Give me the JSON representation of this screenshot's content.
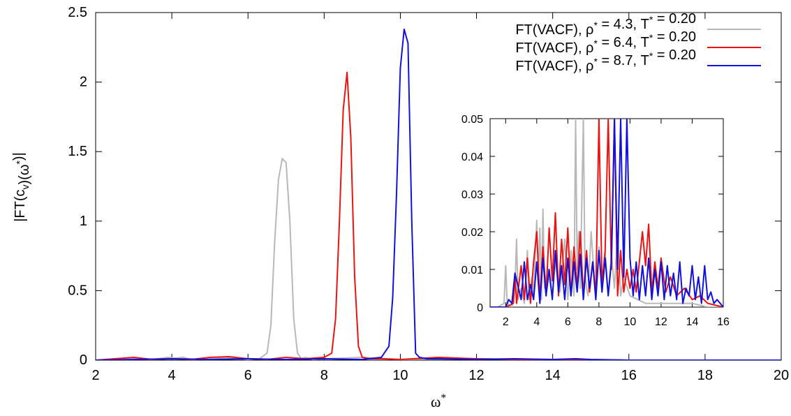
{
  "chart_data": [
    {
      "type": "line",
      "title": "",
      "xlabel": "ω*",
      "ylabel": "|FT(c_v)(ω*)|",
      "xlim": [
        2,
        20
      ],
      "ylim": [
        0,
        2.5
      ],
      "xticks": [
        "2",
        "4",
        "6",
        "8",
        "10",
        "12",
        "14",
        "16",
        "18",
        "20"
      ],
      "yticks": [
        "0",
        "0.5",
        "1",
        "1.5",
        "2",
        "2.5"
      ],
      "grid": false,
      "legend_position": "top-right",
      "series": [
        {
          "name": "FT(VACF), ρ* = 4.3, T* = 0.20",
          "color": "#b8b8b8",
          "x": [
            2.0,
            2.5,
            3.0,
            3.5,
            3.9,
            4.1,
            4.3,
            4.5,
            5.0,
            5.5,
            6.0,
            6.3,
            6.5,
            6.6,
            6.7,
            6.8,
            6.9,
            7.0,
            7.1,
            7.2,
            7.3,
            7.4,
            7.5,
            7.7,
            8.0,
            9.0,
            10.0,
            12.0,
            14.0,
            16.0,
            20.0
          ],
          "values": [
            0.0,
            0.005,
            0.01,
            0.005,
            0.02,
            0.015,
            0.02,
            0.005,
            0.01,
            0.015,
            0.005,
            0.01,
            0.05,
            0.25,
            0.85,
            1.3,
            1.45,
            1.42,
            1.0,
            0.3,
            0.05,
            0.01,
            0.02,
            0.005,
            0.01,
            0.02,
            0.005,
            0.01,
            0.005,
            0.0,
            0.0
          ]
        },
        {
          "name": "FT(VACF), ρ* = 6.4, T* = 0.20",
          "color": "#ee1111",
          "x": [
            2.0,
            2.5,
            3.0,
            3.5,
            4.0,
            4.5,
            5.0,
            5.5,
            6.0,
            6.5,
            7.0,
            7.5,
            8.0,
            8.2,
            8.3,
            8.4,
            8.5,
            8.6,
            8.7,
            8.8,
            8.9,
            9.0,
            9.2,
            9.5,
            10.0,
            11.0,
            12.0,
            13.0,
            14.0,
            16.0,
            20.0
          ],
          "values": [
            0.0,
            0.01,
            0.02,
            0.005,
            0.01,
            0.005,
            0.02,
            0.025,
            0.01,
            0.005,
            0.02,
            0.01,
            0.02,
            0.05,
            0.3,
            1.0,
            1.8,
            2.07,
            1.6,
            0.6,
            0.1,
            0.02,
            0.01,
            0.01,
            0.005,
            0.02,
            0.01,
            0.005,
            0.005,
            0.0,
            0.0
          ]
        },
        {
          "name": "FT(VACF), ρ* = 8.7, T* = 0.20",
          "color": "#1111dd",
          "x": [
            2.0,
            3.0,
            4.0,
            5.0,
            6.0,
            7.0,
            8.0,
            9.0,
            9.5,
            9.7,
            9.8,
            9.9,
            10.0,
            10.1,
            10.2,
            10.3,
            10.4,
            10.5,
            10.7,
            11.0,
            12.0,
            13.0,
            14.0,
            14.6,
            15.0,
            16.0,
            20.0
          ],
          "values": [
            0.0,
            0.005,
            0.01,
            0.005,
            0.01,
            0.005,
            0.01,
            0.005,
            0.02,
            0.1,
            0.45,
            1.2,
            2.1,
            2.38,
            2.28,
            1.0,
            0.05,
            0.02,
            0.01,
            0.01,
            0.005,
            0.01,
            0.005,
            0.01,
            0.005,
            0.0,
            0.0
          ]
        }
      ]
    },
    {
      "type": "line",
      "title": "",
      "xlim": [
        1,
        16
      ],
      "ylim": [
        0,
        0.05
      ],
      "xticks": [
        "2",
        "4",
        "6",
        "8",
        "10",
        "12",
        "14",
        "16"
      ],
      "yticks": [
        "0",
        "0.01",
        "0.02",
        "0.03",
        "0.04",
        "0.05"
      ],
      "grid": false,
      "series": [
        {
          "color": "#b8b8b8",
          "x": [
            1.0,
            1.5,
            1.9,
            2.0,
            2.1,
            2.4,
            2.6,
            2.7,
            2.8,
            3.0,
            3.2,
            3.4,
            3.5,
            3.7,
            3.8,
            4.0,
            4.1,
            4.2,
            4.3,
            4.4,
            4.5,
            4.7,
            5.0,
            5.2,
            5.5,
            5.8,
            6.0,
            6.2,
            6.4,
            6.5,
            6.6,
            6.7,
            6.8,
            7.0,
            7.1,
            7.2,
            7.3,
            7.5,
            7.8,
            8.0,
            8.2,
            8.4,
            8.6,
            8.8,
            9.0,
            9.2,
            9.4,
            9.6,
            10.0,
            10.5,
            11.0,
            12.0,
            13.0,
            14.0,
            15.0,
            16.0
          ],
          "values": [
            0.0,
            0.0,
            0.001,
            0.011,
            0.001,
            0.0,
            0.005,
            0.018,
            0.002,
            0.005,
            0.001,
            0.015,
            0.002,
            0.008,
            0.003,
            0.023,
            0.008,
            0.021,
            0.002,
            0.026,
            0.005,
            0.01,
            0.003,
            0.012,
            0.004,
            0.018,
            0.002,
            0.015,
            0.003,
            0.05,
            0.01,
            0.02,
            0.005,
            0.05,
            0.01,
            0.005,
            0.003,
            0.02,
            0.002,
            0.016,
            0.004,
            0.015,
            0.003,
            0.014,
            0.005,
            0.02,
            0.003,
            0.008,
            0.003,
            0.002,
            0.001,
            0.001,
            0.001,
            0.001,
            0.0,
            0.0
          ]
        },
        {
          "color": "#ee1111",
          "x": [
            1.0,
            2.0,
            2.5,
            2.6,
            2.7,
            3.0,
            3.2,
            3.4,
            3.6,
            3.8,
            4.0,
            4.2,
            4.4,
            4.6,
            4.8,
            5.0,
            5.2,
            5.4,
            5.6,
            5.8,
            6.0,
            6.2,
            6.4,
            6.6,
            6.8,
            7.0,
            7.2,
            7.4,
            7.6,
            7.8,
            8.0,
            8.2,
            8.4,
            8.6,
            8.8,
            9.0,
            9.2,
            9.4,
            9.6,
            9.8,
            10.0,
            10.2,
            10.4,
            10.6,
            10.8,
            11.0,
            11.2,
            11.4,
            11.6,
            11.8,
            12.0,
            12.3,
            12.6,
            13.0,
            13.5,
            14.0,
            14.5,
            15.0,
            16.0
          ],
          "values": [
            0.0,
            0.0,
            0.001,
            0.009,
            0.001,
            0.011,
            0.002,
            0.013,
            0.001,
            0.012,
            0.02,
            0.002,
            0.016,
            0.003,
            0.021,
            0.007,
            0.025,
            0.003,
            0.018,
            0.006,
            0.021,
            0.003,
            0.016,
            0.005,
            0.02,
            0.003,
            0.015,
            0.004,
            0.012,
            0.003,
            0.05,
            0.006,
            0.015,
            0.05,
            0.01,
            0.05,
            0.003,
            0.015,
            0.004,
            0.01,
            0.005,
            0.01,
            0.004,
            0.012,
            0.02,
            0.011,
            0.022,
            0.004,
            0.012,
            0.005,
            0.013,
            0.004,
            0.008,
            0.003,
            0.005,
            0.002,
            0.003,
            0.001,
            0.0
          ]
        },
        {
          "color": "#1111dd",
          "x": [
            1.0,
            2.0,
            2.2,
            2.4,
            2.6,
            3.0,
            3.2,
            3.4,
            3.6,
            3.8,
            4.0,
            4.2,
            4.4,
            4.6,
            4.8,
            5.0,
            5.2,
            5.4,
            5.6,
            5.8,
            6.0,
            6.2,
            6.4,
            6.6,
            6.8,
            7.0,
            7.2,
            7.4,
            7.6,
            7.8,
            8.0,
            8.2,
            8.4,
            8.6,
            8.8,
            9.0,
            9.2,
            9.4,
            9.6,
            9.8,
            10.0,
            10.2,
            10.4,
            10.6,
            10.8,
            11.0,
            11.2,
            11.4,
            11.6,
            11.8,
            12.0,
            12.2,
            12.4,
            12.6,
            12.8,
            13.0,
            13.2,
            13.4,
            13.6,
            13.8,
            14.0,
            14.2,
            14.4,
            14.6,
            14.8,
            15.0,
            15.2,
            15.4,
            15.6,
            16.0
          ],
          "values": [
            0.0,
            0.0,
            0.002,
            0.001,
            0.009,
            0.002,
            0.012,
            0.002,
            0.006,
            0.002,
            0.012,
            0.001,
            0.013,
            0.003,
            0.01,
            0.002,
            0.015,
            0.004,
            0.011,
            0.002,
            0.013,
            0.003,
            0.012,
            0.004,
            0.014,
            0.002,
            0.013,
            0.005,
            0.012,
            0.002,
            0.015,
            0.004,
            0.013,
            0.003,
            0.012,
            0.05,
            0.01,
            0.05,
            0.008,
            0.05,
            0.013,
            0.003,
            0.012,
            0.002,
            0.011,
            0.003,
            0.013,
            0.002,
            0.01,
            0.003,
            0.012,
            0.002,
            0.011,
            0.003,
            0.009,
            0.002,
            0.012,
            0.001,
            0.005,
            0.003,
            0.011,
            0.002,
            0.008,
            0.001,
            0.011,
            0.002,
            0.004,
            0.001,
            0.002,
            0.0
          ]
        }
      ]
    }
  ],
  "axis_labels": {
    "xlabel": "ω*",
    "ylabel": "|FT(c_v)(ω*)|"
  },
  "legend": {
    "entries": [
      {
        "name": "FT(VACF), ρ* = 4.3, T* = 0.20",
        "color": "#b8b8b8"
      },
      {
        "name": "FT(VACF), ρ* = 6.4, T* = 0.20",
        "color": "#ee1111"
      },
      {
        "name": "FT(VACF), ρ* = 8.7, T* = 0.20",
        "color": "#1111dd"
      }
    ]
  }
}
